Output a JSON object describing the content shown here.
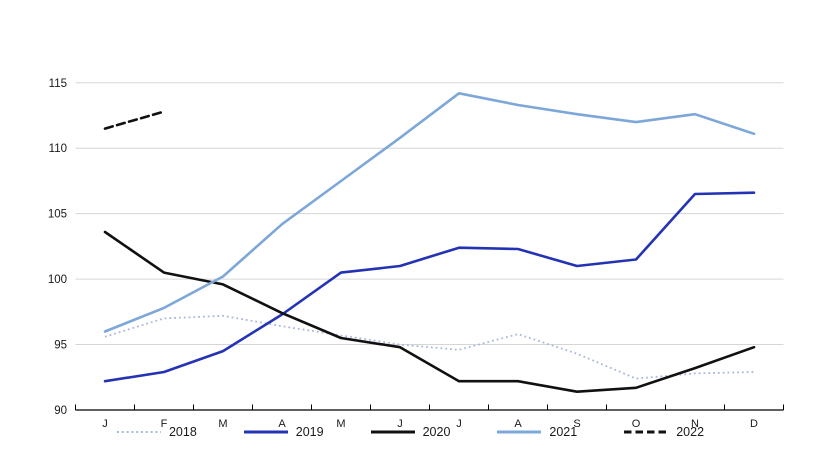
{
  "chart_data": {
    "type": "line",
    "title": "",
    "xlabel": "",
    "ylabel": "",
    "categories": [
      "J",
      "F",
      "M",
      "A",
      "M",
      "J",
      "J",
      "A",
      "S",
      "O",
      "N",
      "D"
    ],
    "ylim": [
      90,
      115
    ],
    "yticks": [
      90,
      95,
      100,
      105,
      110,
      115
    ],
    "grid": "horizontal-only",
    "legend_position": "bottom",
    "series": [
      {
        "name": "2018",
        "color": "#a9b8d8",
        "line_style": "dotted",
        "values": [
          95.6,
          97.0,
          97.2,
          96.4,
          95.7,
          95.0,
          94.6,
          95.8,
          94.3,
          92.4,
          92.8,
          92.9
        ]
      },
      {
        "name": "2019",
        "color": "#2433b4",
        "line_style": "solid",
        "values": [
          92.2,
          92.9,
          94.5,
          97.3,
          100.5,
          101.0,
          102.4,
          102.3,
          101.0,
          101.5,
          106.5,
          106.6
        ]
      },
      {
        "name": "2020",
        "color": "#111111",
        "line_style": "solid",
        "values": [
          103.6,
          100.5,
          99.6,
          97.4,
          95.5,
          94.8,
          92.2,
          92.2,
          91.4,
          91.7,
          93.2,
          94.8
        ]
      },
      {
        "name": "2021",
        "color": "#7da7d9",
        "line_style": "solid",
        "values": [
          96.0,
          97.8,
          100.2,
          104.2,
          107.5,
          110.8,
          114.2,
          113.3,
          112.6,
          112.0,
          112.6,
          111.1
        ]
      },
      {
        "name": "2022",
        "color": "#111111",
        "line_style": "dashed",
        "values": [
          111.5,
          112.8,
          null,
          null,
          null,
          null,
          null,
          null,
          null,
          null,
          null,
          null
        ]
      }
    ]
  },
  "colors": {
    "background": "#ffffff",
    "gridline": "#d6d6d6",
    "axis": "#000000",
    "label": "#1a1a1a"
  }
}
